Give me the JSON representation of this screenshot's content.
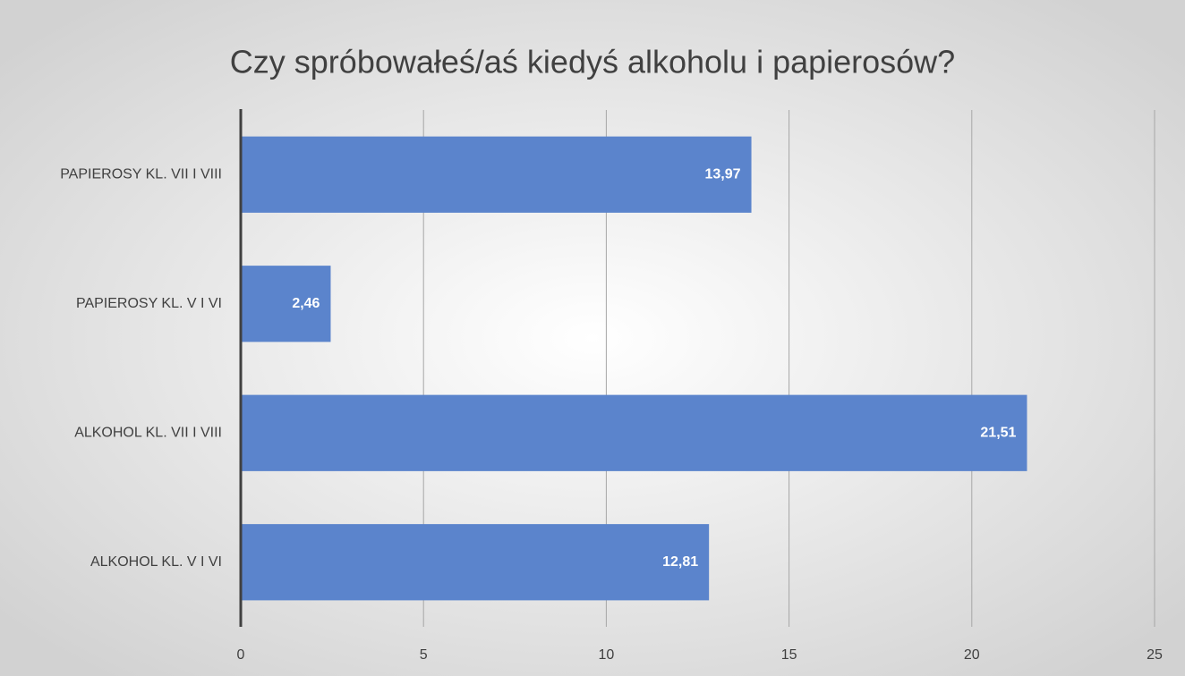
{
  "chart_data": {
    "type": "hbar",
    "title": "Czy spróbowałeś/aś kiedyś alkoholu i papierosów?",
    "categories": [
      "PAPIEROSY KL. VII I VIII",
      "PAPIEROSY KL. V I VI",
      "ALKOHOL KL. VII I VIII",
      "ALKOHOL KL. V I VI"
    ],
    "values": [
      13.97,
      2.46,
      21.51,
      12.81
    ],
    "value_labels": [
      "13,97",
      "2,46",
      "21,51",
      "12,81"
    ],
    "color": "#5b84cc",
    "xlim": [
      0,
      25
    ],
    "xticks": [
      0,
      5,
      10,
      15,
      20,
      25
    ],
    "grid": true
  }
}
